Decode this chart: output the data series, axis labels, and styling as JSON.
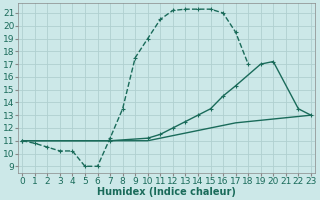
{
  "xlabel": "Humidex (Indice chaleur)",
  "bg_color": "#cce8e8",
  "grid_color": "#b0d0d0",
  "line_color": "#1a6b5a",
  "xlim": [
    0,
    23
  ],
  "ylim": [
    9,
    21.5
  ],
  "yticks": [
    9,
    10,
    11,
    12,
    13,
    14,
    15,
    16,
    17,
    18,
    19,
    20,
    21
  ],
  "xticks": [
    0,
    1,
    2,
    3,
    4,
    5,
    6,
    7,
    8,
    9,
    10,
    11,
    12,
    13,
    14,
    15,
    16,
    17,
    18,
    19,
    20,
    21,
    22,
    23
  ],
  "line1_x": [
    0,
    1,
    2,
    3,
    4,
    5,
    6,
    7,
    8,
    9,
    10,
    11,
    12,
    13,
    14,
    15,
    16,
    17,
    18
  ],
  "line1_y": [
    11.0,
    10.8,
    10.5,
    10.2,
    10.2,
    9.0,
    9.0,
    11.2,
    13.5,
    17.5,
    19.0,
    20.5,
    21.2,
    21.3,
    21.3,
    21.3,
    21.0,
    19.5,
    17.0
  ],
  "line2_x": [
    0,
    7,
    10,
    11,
    12,
    13,
    14,
    15,
    16,
    17,
    19,
    20,
    22,
    23
  ],
  "line2_y": [
    11.0,
    11.0,
    11.2,
    11.5,
    12.0,
    12.5,
    13.0,
    13.5,
    14.5,
    15.3,
    17.0,
    17.2,
    13.5,
    13.0
  ],
  "line3_x": [
    0,
    7,
    10,
    11,
    12,
    13,
    14,
    15,
    16,
    17,
    18,
    19,
    20,
    21,
    22,
    23
  ],
  "line3_y": [
    11.0,
    11.0,
    11.0,
    11.2,
    11.4,
    11.6,
    11.8,
    12.0,
    12.2,
    12.4,
    12.5,
    12.6,
    12.7,
    12.8,
    12.9,
    13.0
  ],
  "fontsize": 6.5,
  "marker_size": 3.5,
  "linewidth": 1.0
}
